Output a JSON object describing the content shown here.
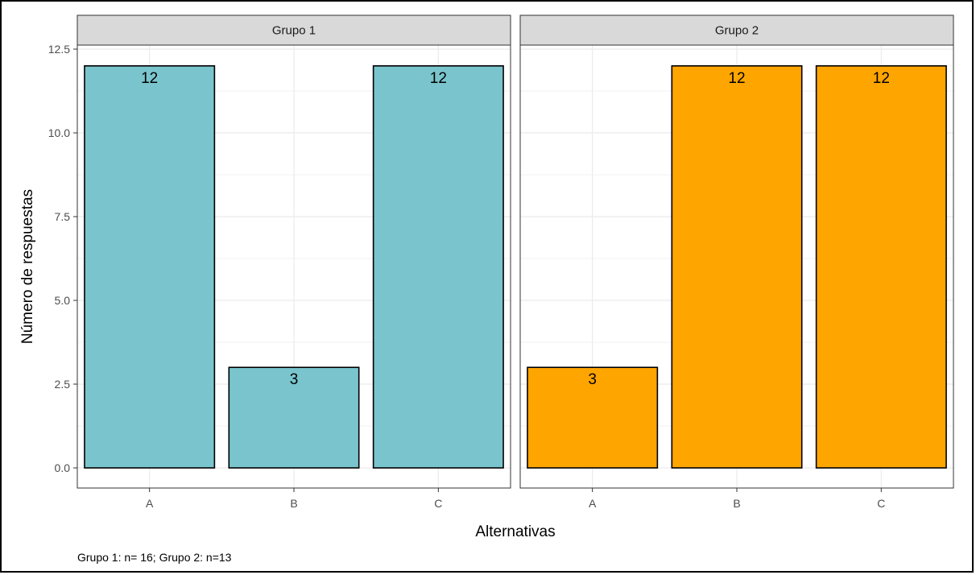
{
  "chart_data": {
    "type": "bar",
    "ylabel": "Número de respuestas",
    "xlabel": "Alternativas",
    "caption": "Grupo 1: n= 16; Grupo 2: n=13",
    "categories": [
      "A",
      "B",
      "C"
    ],
    "ylim": [
      0,
      12.5
    ],
    "yticks": [
      "0.0",
      "2.5",
      "5.0",
      "7.5",
      "10.0",
      "12.5"
    ],
    "ytick_values": [
      0,
      2.5,
      5,
      7.5,
      10,
      12.5
    ],
    "grid": true,
    "facets": [
      {
        "name": "Grupo 1",
        "color": "#7AC5CD",
        "values": [
          12,
          3,
          12
        ],
        "labels": [
          "12",
          "3",
          "12"
        ]
      },
      {
        "name": "Grupo 2",
        "color": "#FFA500",
        "values": [
          3,
          12,
          12
        ],
        "labels": [
          "3",
          "12",
          "12"
        ]
      }
    ]
  }
}
